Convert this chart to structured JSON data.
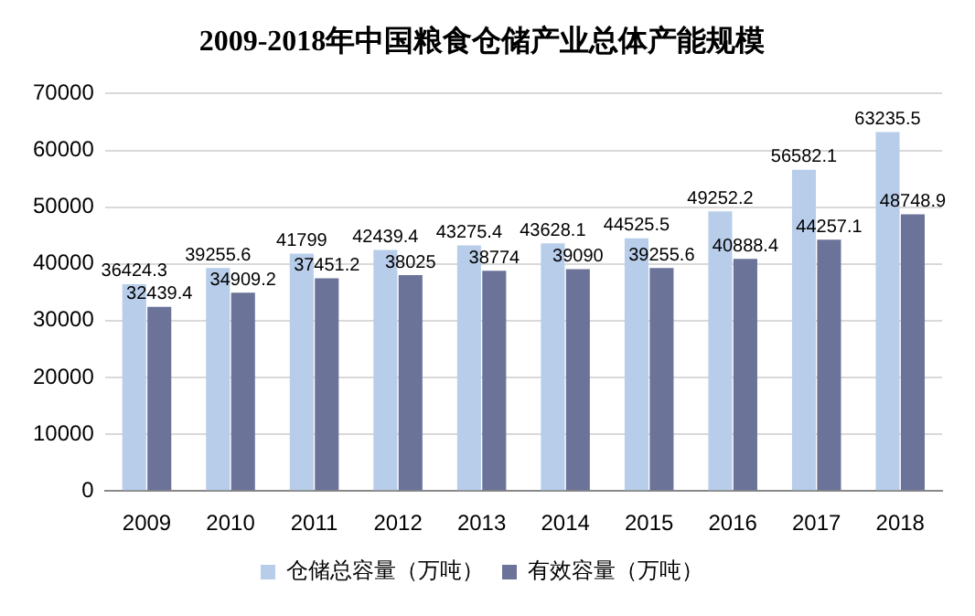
{
  "chart_data": {
    "type": "bar",
    "title": "2009-2018年中国粮食仓储产业总体产能规模",
    "categories": [
      "2009",
      "2010",
      "2011",
      "2012",
      "2013",
      "2014",
      "2015",
      "2016",
      "2017",
      "2018"
    ],
    "series": [
      {
        "name": "仓储总容量（万吨）",
        "color": "#b7cdea",
        "values": [
          36424.3,
          39255.6,
          41799,
          42439.4,
          43275.4,
          43628.1,
          44525.5,
          49252.2,
          56582.1,
          63235.5
        ]
      },
      {
        "name": "有效容量（万吨）",
        "color": "#6b7399",
        "values": [
          32439.4,
          34909.2,
          37451.2,
          38025,
          38774,
          39090,
          39255.6,
          40888.4,
          44257.1,
          48748.9
        ]
      }
    ],
    "ylim": [
      0,
      70000
    ],
    "yticks": [
      0,
      10000,
      20000,
      30000,
      40000,
      50000,
      60000,
      70000
    ],
    "grid": "y",
    "legend": "bottom",
    "data_labels": true
  }
}
